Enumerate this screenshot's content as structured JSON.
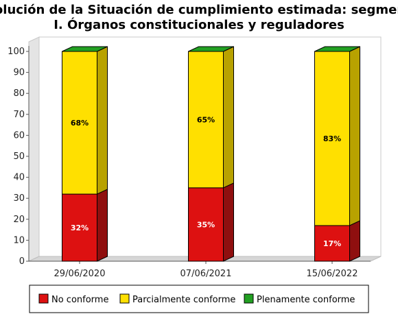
{
  "chart_data": {
    "type": "bar",
    "stacked": true,
    "style": "3d",
    "title": "Evolución de la Situación de cumplimiento estimada: segmento I. Órganos constitucionales y reguladores",
    "title_lines": [
      "Evolución de la Situación de cumplimiento estimada: segmento",
      "I. Órganos constitucionales y reguladores"
    ],
    "categories": [
      "29/06/2020",
      "07/06/2021",
      "15/06/2022"
    ],
    "series": [
      {
        "name": "No conforme",
        "color": "#dd1111",
        "side_color": "#8f0f0f",
        "label_color": "#ffffff",
        "values": [
          32,
          35,
          17
        ],
        "labels": [
          "32%",
          "35%",
          "17%"
        ]
      },
      {
        "name": "Parcialmente conforme",
        "color": "#ffe000",
        "side_color": "#b8a200",
        "label_color": "#000000",
        "values": [
          68,
          65,
          83
        ],
        "labels": [
          "68%",
          "65%",
          "83%"
        ]
      },
      {
        "name": "Plenamente conforme",
        "color": "#22a022",
        "side_color": "#157015",
        "label_color": "#000000",
        "values": [
          0,
          0,
          0
        ],
        "labels": [
          "",
          "",
          ""
        ]
      }
    ],
    "ylim": [
      0,
      100
    ],
    "yticks": [
      0,
      10,
      20,
      30,
      40,
      50,
      60,
      70,
      80,
      90,
      100
    ],
    "grid": false,
    "legend": "bottom",
    "xlabel": "",
    "ylabel": ""
  }
}
